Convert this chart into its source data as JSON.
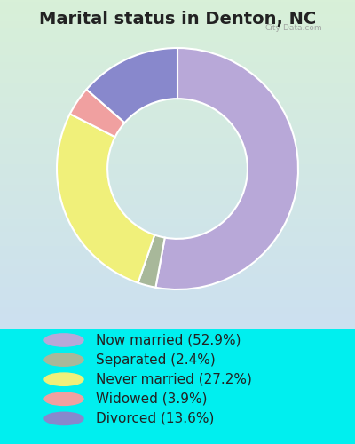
{
  "title": "Marital status in Denton, NC",
  "slices": [
    {
      "label": "Now married (52.9%)",
      "value": 52.9,
      "color": "#b8a8d8"
    },
    {
      "label": "Separated (2.4%)",
      "value": 2.4,
      "color": "#a8b89a"
    },
    {
      "label": "Never married (27.2%)",
      "value": 27.2,
      "color": "#f0f07a"
    },
    {
      "label": "Widowed (3.9%)",
      "value": 3.9,
      "color": "#f0a0a0"
    },
    {
      "label": "Divorced (13.6%)",
      "value": 13.6,
      "color": "#8888cc"
    }
  ],
  "bg_outer": "#00EFEF",
  "title_color": "#222222",
  "title_fontsize": 14,
  "legend_fontsize": 11,
  "watermark": "City-Data.com"
}
